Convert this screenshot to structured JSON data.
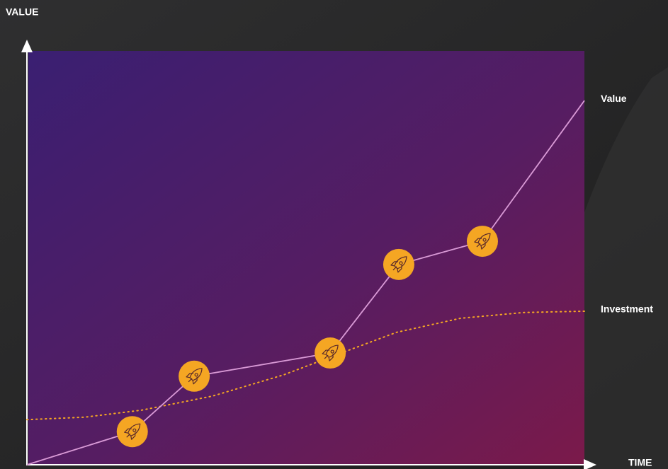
{
  "chart_data": {
    "type": "line",
    "y_label": "VALUE",
    "x_label": "TIME",
    "xlim": [
      0,
      100
    ],
    "ylim": [
      0,
      100
    ],
    "series": [
      {
        "name": "Value",
        "color": "#d99ad6",
        "style": "solid",
        "marker": "rocket",
        "marker_color": "#f5a623",
        "x": [
          0,
          18.9,
          30,
          54.4,
          66.7,
          81.7,
          100
        ],
        "values": [
          0,
          8.0,
          21.4,
          27.0,
          48.4,
          54.0,
          88.0
        ]
      },
      {
        "name": "Investment",
        "color": "#f5a623",
        "style": "dotted",
        "x": [
          0,
          10.4,
          20.6,
          33.3,
          46,
          54.4,
          66.3,
          77.8,
          89.2,
          100
        ],
        "values": [
          10.9,
          11.5,
          13.2,
          16.6,
          21.7,
          26.0,
          32.0,
          35.4,
          36.8,
          37.1
        ]
      }
    ]
  }
}
